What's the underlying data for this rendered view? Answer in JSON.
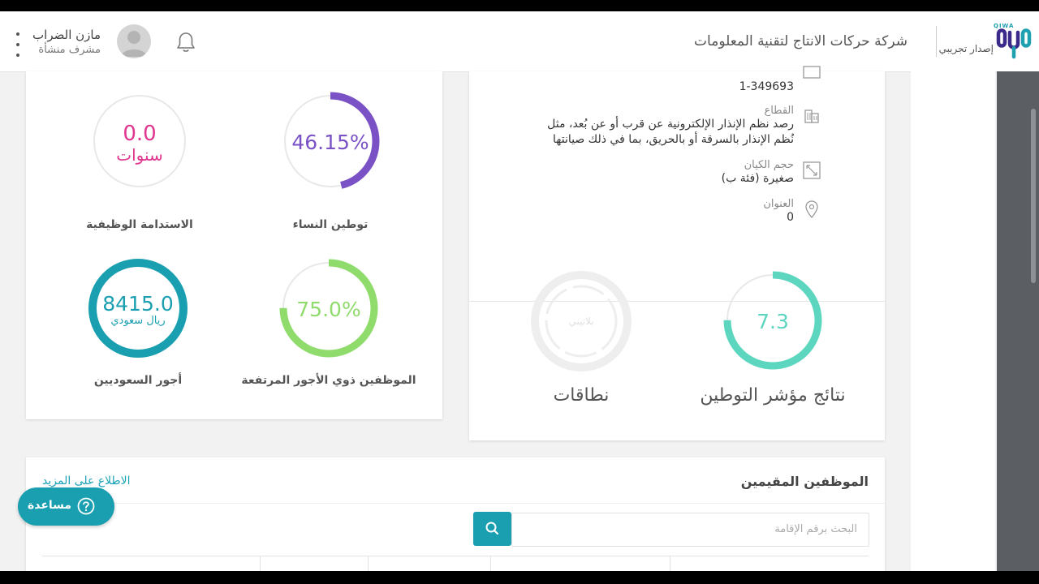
{
  "header": {
    "user_name": "مازن الضراب",
    "user_role": "مشرف منشأة",
    "company_name": "شركة حركات الانتاج لتقنية المعلومات",
    "edition_label": "إصدار تجريبي",
    "logo_text": "QIWA"
  },
  "metrics": [
    {
      "label": "توطين النساء",
      "value": "46.15%",
      "fraction": 0.4615,
      "color": "#7a52c6"
    },
    {
      "label": "الاستدامة الوظيفية",
      "value": "0.0",
      "unit": "سنوات",
      "fraction": 0.0,
      "color": "#e0368f"
    },
    {
      "label": "الموظفين ذوي الأجور المرتفعة",
      "value": "75.0%",
      "fraction": 0.75,
      "color": "#8fdc6c"
    },
    {
      "label": "أجور السعوديين",
      "value": "8415.0",
      "unit": "ريال سعودي",
      "fraction": 1.0,
      "color": "#1a9fb1"
    }
  ],
  "establishment": {
    "id_value": "1-349693",
    "sector_label": "القطاع",
    "sector_value": "رصد نظم الإنذار الإلكترونية عن قرب أو عن بُعد، مثل نُظم الإنذار بالسرقة أو بالحريق، بما في ذلك صيانتها",
    "size_label": "حجم الكيان",
    "size_value": "صغيرة (فئة ب)",
    "address_label": "العنوان",
    "address_value": "0"
  },
  "results": {
    "nitaqat_score": "7.3",
    "nitaqat_score_fraction": 0.75,
    "nitaqat_score_color": "#5dd6bf",
    "nitaqat_score_label": "نتائج مؤشر التوطين",
    "nitaqat_band_value": "بلاتيني",
    "nitaqat_band_label": "نطاقات"
  },
  "residents": {
    "title": "الموظفين المقيمين",
    "more_link": "الاطلاع على المزيد",
    "search_placeholder": "البحث برقم الإقامة"
  },
  "help": {
    "label": "مساعدة"
  }
}
